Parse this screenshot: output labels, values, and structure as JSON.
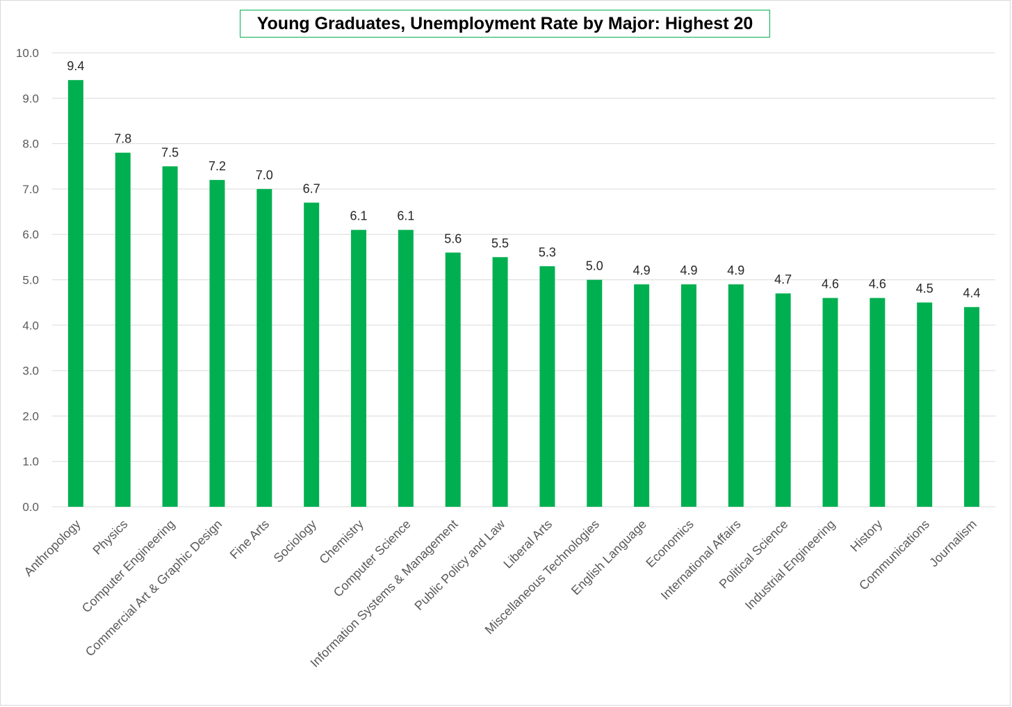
{
  "chart_data": {
    "type": "bar",
    "title": "Young Graduates, Unemployment Rate by Major: Highest 20",
    "categories": [
      "Anthropology",
      "Physics",
      "Computer Engineering",
      "Commercial Art & Graphic Design",
      "Fine Arts",
      "Sociology",
      "Chemistry",
      "Computer Science",
      "Information Systems & Management",
      "Public Policy and Law",
      "Liberal Arts",
      "Miscellaneous Technologies",
      "English Language",
      "Economics",
      "International Affairs",
      "Political Science",
      "Industrial Engineering",
      "History",
      "Communications",
      "Journalism"
    ],
    "values": [
      9.4,
      7.8,
      7.5,
      7.2,
      7.0,
      6.7,
      6.1,
      6.1,
      5.6,
      5.5,
      5.3,
      5.0,
      4.9,
      4.9,
      4.9,
      4.7,
      4.6,
      4.6,
      4.5,
      4.4
    ],
    "data_labels": [
      "9.4",
      "7.8",
      "7.5",
      "7.2",
      "7.0",
      "6.7",
      "6.1",
      "6.1",
      "5.6",
      "5.5",
      "5.3",
      "5.0",
      "4.9",
      "4.9",
      "4.9",
      "4.7",
      "4.6",
      "4.6",
      "4.5",
      "4.4"
    ],
    "xlabel": "",
    "ylabel": "",
    "ylim": [
      0,
      10
    ],
    "yticks": [
      "0.0",
      "1.0",
      "2.0",
      "3.0",
      "4.0",
      "5.0",
      "6.0",
      "7.0",
      "8.0",
      "9.0",
      "10.0"
    ],
    "grid": true,
    "legend": "none",
    "bar_color": "#00b050",
    "grid_color": "#d9d9d9"
  }
}
